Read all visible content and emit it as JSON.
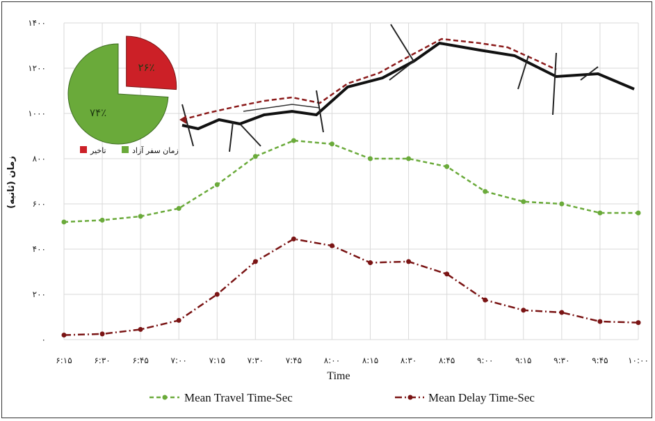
{
  "chart_data": {
    "type": "line",
    "xlabel": "Time",
    "ylabel": "زمان (ثانیه)",
    "x": [
      "۶:۱۵",
      "۶:۳۰",
      "۶:۴۵",
      "۷:۰۰",
      "۷:۱۵",
      "۷:۳۰",
      "۷:۴۵",
      "۸:۰۰",
      "۸:۱۵",
      "۸:۳۰",
      "۸:۴۵",
      "۹:۰۰",
      "۹:۱۵",
      "۹:۳۰",
      "۹:۴۵",
      "۱۰:۰۰"
    ],
    "yticks": [
      "۰",
      "۲۰۰",
      "۴۰۰",
      "۶۰۰",
      "۸۰۰",
      "۱۰۰۰",
      "۱۲۰۰",
      "۱۴۰۰"
    ],
    "ylim": [
      0,
      1400
    ],
    "grid": true,
    "legend_position": "bottom",
    "series": [
      {
        "name": "Mean Travel Time-Sec",
        "color": "#6aaa3a",
        "values": [
          520,
          528,
          545,
          580,
          685,
          810,
          880,
          865,
          800,
          800,
          765,
          655,
          610,
          600,
          560,
          560
        ]
      },
      {
        "name": "Mean Delay Time-Sec",
        "color": "#7a1414",
        "values": [
          20,
          25,
          45,
          85,
          200,
          345,
          445,
          415,
          340,
          345,
          290,
          175,
          130,
          120,
          80,
          75
        ]
      }
    ],
    "inset_pie": {
      "slices": [
        {
          "label": "تاخیر",
          "value": 26,
          "text": "۲۶٪",
          "color": "#cc2027"
        },
        {
          "label": "زمان سفر آزاد",
          "value": 74,
          "text": "۷۴٪",
          "color": "#6aaa3a"
        }
      ]
    }
  }
}
